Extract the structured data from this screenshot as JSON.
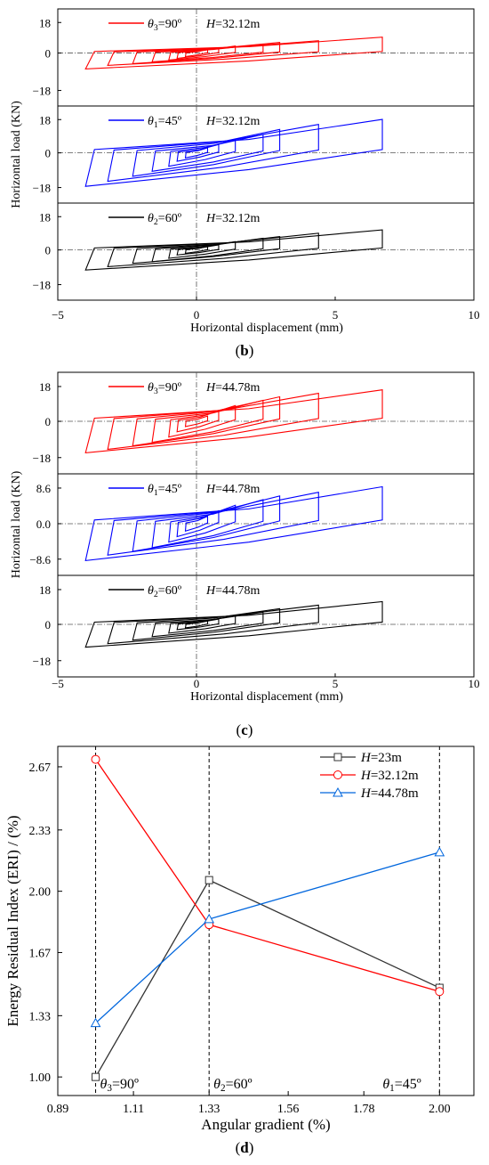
{
  "captions": {
    "b": "b",
    "c": "c",
    "d": "d"
  },
  "hysteresis_panel_b": {
    "xlabel": "Horizontal displacement (mm)",
    "ylabel": "Horizontal load (KN)",
    "xticks": [
      "−5",
      "0",
      "5",
      "10"
    ],
    "subplots": [
      {
        "theta": "θ3=90º",
        "H": "H=32.12m",
        "color": "#ff0000",
        "yticks": [
          "18",
          "0",
          "−18"
        ]
      },
      {
        "theta": "θ1=45º",
        "H": "H=32.12m",
        "color": "#0000ff",
        "yticks": [
          "18",
          "0",
          "−18"
        ]
      },
      {
        "theta": "θ2=60º",
        "H": "H=32.12m",
        "color": "#000000",
        "yticks": [
          "18",
          "0",
          "−18"
        ]
      }
    ]
  },
  "hysteresis_panel_c": {
    "xlabel": "Horizontal displacement (mm)",
    "ylabel": "Horizontal load (KN)",
    "xticks": [
      "−5",
      "0",
      "5",
      "10"
    ],
    "subplots": [
      {
        "theta": "θ3=90º",
        "H": "H=44.78m",
        "color": "#ff0000",
        "yticks": [
          "18",
          "0",
          "−18"
        ]
      },
      {
        "theta": "θ1=45º",
        "H": "H=44.78m",
        "color": "#0000ff",
        "yticks": [
          "8.6",
          "0.0",
          "−8.6"
        ]
      },
      {
        "theta": "θ2=60º",
        "H": "H=44.78m",
        "color": "#000000",
        "yticks": [
          "18",
          "0",
          "−18"
        ]
      }
    ]
  },
  "chart_data": [
    {
      "type": "line",
      "title": "",
      "xlabel": "Angular gradient (%)",
      "ylabel": "Energy Residual Index (ERI) / (%)",
      "xlim": [
        0.89,
        2.1
      ],
      "ylim": [
        0.9,
        2.78
      ],
      "x_ticks": [
        "0.89",
        "1.11",
        "1.33",
        "1.56",
        "1.78",
        "2.00"
      ],
      "y_ticks": [
        "1.00",
        "1.33",
        "1.67",
        "2.00",
        "2.33",
        "2.67"
      ],
      "x": [
        1.0,
        1.33,
        2.0
      ],
      "series": [
        {
          "name": "H=23m",
          "color": "#333333",
          "marker": "square",
          "values": [
            1.0,
            2.06,
            1.48
          ]
        },
        {
          "name": "H=32.12m",
          "color": "#ff0000",
          "marker": "circle",
          "values": [
            2.71,
            1.82,
            1.46
          ]
        },
        {
          "name": "H=44.78m",
          "color": "#0066dd",
          "marker": "triangle",
          "values": [
            1.29,
            1.85,
            2.21
          ]
        }
      ],
      "vlines": [
        {
          "x": 1.0,
          "label": "θ3=90º"
        },
        {
          "x": 1.33,
          "label": "θ2=60º"
        },
        {
          "x": 2.0,
          "label": "θ1=45º"
        }
      ],
      "legend": "top-right"
    },
    {
      "type": "line",
      "title": "",
      "xlabel": "Horizontal displacement (mm)",
      "ylabel": "Horizontal load (KN)",
      "xlim": [
        -5,
        10
      ],
      "x_ticks": [
        "−5",
        "0",
        "5",
        "10"
      ],
      "note": "Hysteresis loops, panel (b): three stacked subplots, H=32.12m",
      "series": [
        {
          "name": "θ3=90º",
          "color": "#ff0000",
          "ylim": [
            -30,
            25
          ],
          "loops": [
            {
              "xmin": -0.4,
              "xmax": 0.4,
              "ymin": -2,
              "ymax": 2
            },
            {
              "xmin": -0.7,
              "xmax": 0.8,
              "ymin": -3,
              "ymax": 3
            },
            {
              "xmin": -1.0,
              "xmax": 1.4,
              "ymin": -4,
              "ymax": 4
            },
            {
              "xmin": -1.6,
              "xmax": 2.4,
              "ymin": -5,
              "ymax": 5
            },
            {
              "xmin": -2.3,
              "xmax": 3.0,
              "ymin": -6,
              "ymax": 6
            },
            {
              "xmin": -3.2,
              "xmax": 4.4,
              "ymin": -7,
              "ymax": 7
            },
            {
              "xmin": -4.0,
              "xmax": 6.7,
              "ymin": -9,
              "ymax": 9
            }
          ]
        },
        {
          "name": "θ1=45º",
          "color": "#0000ff",
          "ylim": [
            -30,
            28
          ],
          "loops": [
            {
              "xmin": -0.4,
              "xmax": 0.4,
              "ymin": -3,
              "ymax": 3
            },
            {
              "xmin": -0.7,
              "xmax": 0.8,
              "ymin": -5,
              "ymax": 5
            },
            {
              "xmin": -1.0,
              "xmax": 1.4,
              "ymin": -8,
              "ymax": 8
            },
            {
              "xmin": -1.6,
              "xmax": 2.4,
              "ymin": -11,
              "ymax": 11
            },
            {
              "xmin": -2.3,
              "xmax": 3.0,
              "ymin": -14,
              "ymax": 14
            },
            {
              "xmin": -3.2,
              "xmax": 4.4,
              "ymin": -17,
              "ymax": 17
            },
            {
              "xmin": -4.0,
              "xmax": 6.7,
              "ymin": -20,
              "ymax": 20
            }
          ]
        },
        {
          "name": "θ2=60º",
          "color": "#000000",
          "ylim": [
            -30,
            28
          ],
          "loops": [
            {
              "xmin": -0.4,
              "xmax": 0.4,
              "ymin": -2,
              "ymax": 2
            },
            {
              "xmin": -0.7,
              "xmax": 0.8,
              "ymin": -3,
              "ymax": 3
            },
            {
              "xmin": -1.0,
              "xmax": 1.4,
              "ymin": -5,
              "ymax": 5
            },
            {
              "xmin": -1.6,
              "xmax": 2.4,
              "ymin": -7,
              "ymax": 7
            },
            {
              "xmin": -2.3,
              "xmax": 3.0,
              "ymin": -8,
              "ymax": 8
            },
            {
              "xmin": -3.2,
              "xmax": 4.4,
              "ymin": -10,
              "ymax": 10
            },
            {
              "xmin": -4.0,
              "xmax": 6.7,
              "ymin": -12,
              "ymax": 12
            }
          ]
        }
      ]
    },
    {
      "type": "line",
      "title": "",
      "xlabel": "Horizontal displacement (mm)",
      "ylabel": "Horizontal load (KN)",
      "xlim": [
        -5,
        10
      ],
      "x_ticks": [
        "−5",
        "0",
        "5",
        "10"
      ],
      "note": "Hysteresis loops, panel (c): three stacked subplots, H=44.78m",
      "series": [
        {
          "name": "θ3=90º",
          "color": "#ff0000",
          "ylim": [
            -30,
            28
          ],
          "loops": [
            {
              "xmin": -0.4,
              "xmax": 0.4,
              "ymin": -3,
              "ymax": 3
            },
            {
              "xmin": -0.7,
              "xmax": 0.8,
              "ymin": -6,
              "ymax": 6
            },
            {
              "xmin": -1.0,
              "xmax": 1.4,
              "ymin": -9,
              "ymax": 9
            },
            {
              "xmin": -1.6,
              "xmax": 2.4,
              "ymin": -12,
              "ymax": 12
            },
            {
              "xmin": -2.3,
              "xmax": 3.0,
              "ymin": -14,
              "ymax": 14
            },
            {
              "xmin": -3.2,
              "xmax": 4.4,
              "ymin": -16,
              "ymax": 16
            },
            {
              "xmin": -4.0,
              "xmax": 6.7,
              "ymin": -18,
              "ymax": 18
            }
          ]
        },
        {
          "name": "θ1=45º",
          "color": "#0000ff",
          "ylim": [
            -14,
            13.5
          ],
          "loops": [
            {
              "xmin": -0.4,
              "xmax": 0.4,
              "ymin": -2,
              "ymax": 2
            },
            {
              "xmin": -0.7,
              "xmax": 0.8,
              "ymin": -3.5,
              "ymax": 3.5
            },
            {
              "xmin": -1.0,
              "xmax": 1.4,
              "ymin": -5,
              "ymax": 5
            },
            {
              "xmin": -1.6,
              "xmax": 2.4,
              "ymin": -6.5,
              "ymax": 6.5
            },
            {
              "xmin": -2.3,
              "xmax": 3.0,
              "ymin": -7.5,
              "ymax": 7.5
            },
            {
              "xmin": -3.2,
              "xmax": 4.4,
              "ymin": -8.5,
              "ymax": 8.5
            },
            {
              "xmin": -4.0,
              "xmax": 6.7,
              "ymin": -10,
              "ymax": 10
            }
          ]
        },
        {
          "name": "θ2=60º",
          "color": "#000000",
          "ylim": [
            -30,
            28
          ],
          "loops": [
            {
              "xmin": -0.4,
              "xmax": 0.4,
              "ymin": -2,
              "ymax": 2
            },
            {
              "xmin": -0.7,
              "xmax": 0.8,
              "ymin": -3,
              "ymax": 3
            },
            {
              "xmin": -1.0,
              "xmax": 1.4,
              "ymin": -5,
              "ymax": 5
            },
            {
              "xmin": -1.6,
              "xmax": 2.4,
              "ymin": -7,
              "ymax": 7
            },
            {
              "xmin": -2.3,
              "xmax": 3.0,
              "ymin": -9,
              "ymax": 9
            },
            {
              "xmin": -3.2,
              "xmax": 4.4,
              "ymin": -11,
              "ymax": 11
            },
            {
              "xmin": -4.0,
              "xmax": 6.7,
              "ymin": -13,
              "ymax": 13
            }
          ]
        }
      ]
    }
  ]
}
